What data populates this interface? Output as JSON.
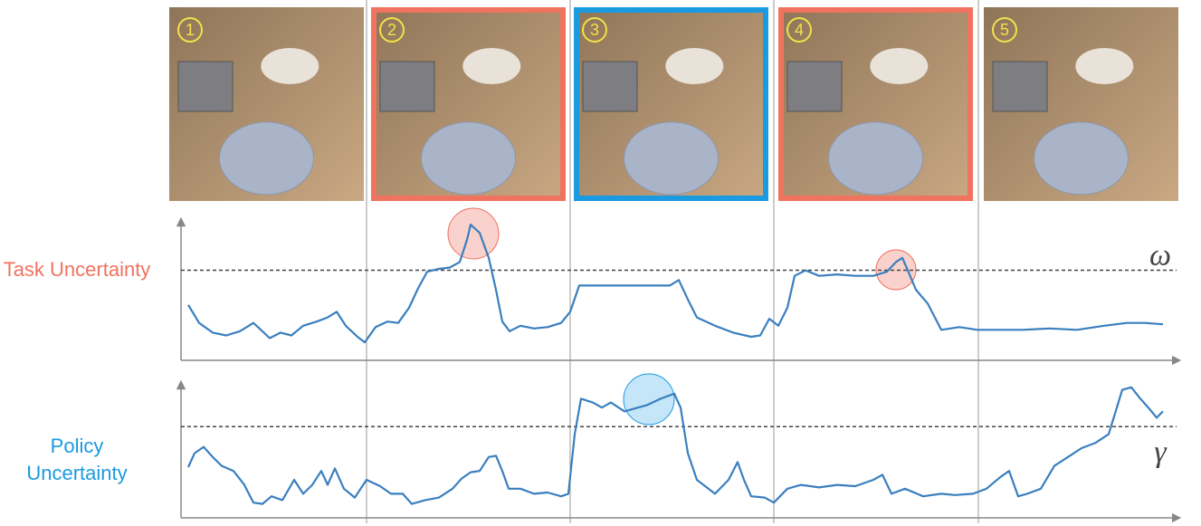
{
  "panels": [
    {
      "label": "1"
    },
    {
      "label": "2",
      "border": "#f0735f"
    },
    {
      "label": "3",
      "border": "#1a9ae0"
    },
    {
      "label": "4",
      "border": "#f0735f"
    },
    {
      "label": "5"
    }
  ],
  "chart_data": [
    {
      "type": "line",
      "y_label": "Task Uncertainty",
      "y_label_color": "#f0735f",
      "xlim": [
        200,
        1300
      ],
      "ylim": [
        0,
        1
      ],
      "threshold": {
        "value": 0.65,
        "label": "ω"
      },
      "x": [
        208,
        220,
        235,
        250,
        265,
        280,
        290,
        298,
        310,
        322,
        335,
        350,
        362,
        372,
        382,
        395,
        403,
        415,
        428,
        440,
        452,
        462,
        472,
        485,
        497,
        508,
        516,
        520,
        530,
        540,
        548,
        555,
        563,
        575,
        590,
        605,
        620,
        630,
        640,
        660,
        680,
        700,
        720,
        740,
        750,
        760,
        770,
        790,
        810,
        830,
        840,
        850,
        860,
        870,
        878,
        890,
        905,
        925,
        945,
        965,
        980,
        990,
        997,
        1003,
        1012,
        1025,
        1040,
        1060,
        1080,
        1100,
        1130,
        1160,
        1190,
        1220,
        1245,
        1265,
        1285
      ],
      "series": [
        {
          "color": "#3a7fbf",
          "values": [
            0.4,
            0.27,
            0.2,
            0.18,
            0.21,
            0.27,
            0.21,
            0.16,
            0.2,
            0.18,
            0.25,
            0.28,
            0.31,
            0.35,
            0.25,
            0.17,
            0.13,
            0.24,
            0.28,
            0.27,
            0.38,
            0.52,
            0.64,
            0.66,
            0.67,
            0.71,
            0.87,
            0.98,
            0.92,
            0.74,
            0.51,
            0.28,
            0.21,
            0.25,
            0.23,
            0.24,
            0.27,
            0.35,
            0.54,
            0.54,
            0.54,
            0.54,
            0.54,
            0.54,
            0.58,
            0.44,
            0.31,
            0.25,
            0.2,
            0.17,
            0.18,
            0.3,
            0.25,
            0.38,
            0.61,
            0.65,
            0.61,
            0.62,
            0.61,
            0.61,
            0.64,
            0.71,
            0.74,
            0.65,
            0.51,
            0.41,
            0.22,
            0.24,
            0.22,
            0.22,
            0.22,
            0.23,
            0.22,
            0.25,
            0.27,
            0.27,
            0.26
          ]
        }
      ]
    },
    {
      "type": "line",
      "y_label": "Policy Uncertainty",
      "y_label_color": "#1a9ae0",
      "xlim": [
        200,
        1300
      ],
      "ylim": [
        0,
        1.05
      ],
      "threshold": {
        "value": 0.72,
        "label": "γ"
      },
      "x": [
        208,
        215,
        225,
        235,
        245,
        258,
        270,
        280,
        290,
        300,
        312,
        325,
        335,
        345,
        355,
        362,
        370,
        380,
        392,
        405,
        420,
        432,
        445,
        455,
        470,
        485,
        500,
        510,
        520,
        530,
        540,
        548,
        555,
        562,
        575,
        590,
        605,
        620,
        628,
        635,
        642,
        655,
        665,
        675,
        690,
        700,
        715,
        730,
        745,
        752,
        760,
        770,
        790,
        805,
        815,
        822,
        830,
        845,
        855,
        870,
        885,
        905,
        925,
        945,
        965,
        975,
        985,
        1000,
        1020,
        1040,
        1055,
        1075,
        1090,
        1105,
        1115,
        1125,
        1135,
        1150,
        1165,
        1180,
        1195,
        1210,
        1225,
        1240,
        1250,
        1260,
        1270,
        1278,
        1285
      ],
      "series": [
        {
          "color": "#3a7fbf",
          "values": [
            0.4,
            0.51,
            0.56,
            0.48,
            0.41,
            0.37,
            0.26,
            0.12,
            0.11,
            0.17,
            0.14,
            0.3,
            0.19,
            0.26,
            0.37,
            0.26,
            0.39,
            0.23,
            0.16,
            0.3,
            0.25,
            0.19,
            0.19,
            0.11,
            0.14,
            0.16,
            0.23,
            0.31,
            0.36,
            0.37,
            0.48,
            0.49,
            0.37,
            0.23,
            0.23,
            0.19,
            0.2,
            0.17,
            0.19,
            0.66,
            0.94,
            0.91,
            0.87,
            0.91,
            0.84,
            0.86,
            0.89,
            0.94,
            0.98,
            0.87,
            0.51,
            0.3,
            0.19,
            0.3,
            0.44,
            0.3,
            0.17,
            0.16,
            0.12,
            0.23,
            0.26,
            0.24,
            0.26,
            0.25,
            0.3,
            0.34,
            0.19,
            0.23,
            0.17,
            0.19,
            0.18,
            0.19,
            0.23,
            0.32,
            0.37,
            0.17,
            0.19,
            0.23,
            0.41,
            0.48,
            0.55,
            0.59,
            0.66,
            1.01,
            1.03,
            0.94,
            0.86,
            0.79,
            0.84
          ]
        }
      ]
    }
  ]
}
